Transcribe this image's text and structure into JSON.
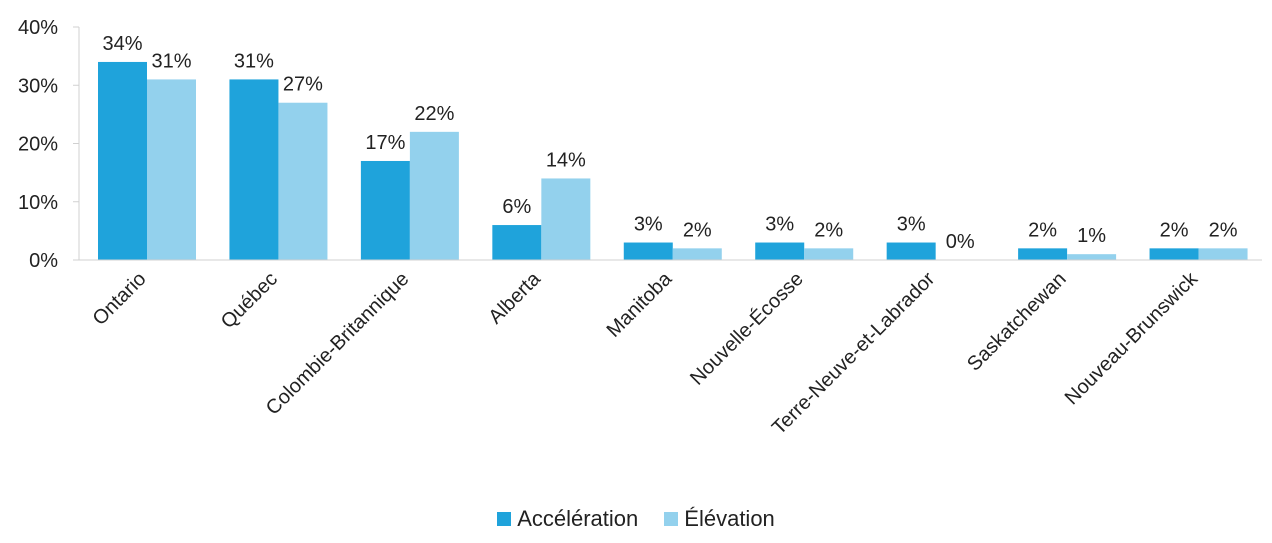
{
  "chart_data": {
    "type": "bar",
    "categories": [
      "Ontario",
      "Québec",
      "Colombie-Britannique",
      "Alberta",
      "Manitoba",
      "Nouvelle-Écosse",
      "Terre-Neuve-et-Labrador",
      "Saskatchewan",
      "Nouveau-Brunswick"
    ],
    "series": [
      {
        "name": "Accélération",
        "color": "#1fa3db",
        "values": [
          34,
          31,
          17,
          6,
          3,
          3,
          3,
          2,
          2
        ],
        "labels": [
          "34%",
          "31%",
          "17%",
          "6%",
          "3%",
          "3%",
          "3%",
          "2%",
          "2%"
        ]
      },
      {
        "name": "Élévation",
        "color": "#93d1ed",
        "values": [
          31,
          27,
          22,
          14,
          2,
          2,
          0,
          1,
          2
        ],
        "labels": [
          "31%",
          "27%",
          "22%",
          "14%",
          "2%",
          "2%",
          "0%",
          "1%",
          "2%"
        ]
      }
    ],
    "ylim": [
      0,
      40
    ],
    "yticks": [
      0,
      10,
      20,
      30,
      40
    ],
    "yticklabels": [
      "0%",
      "10%",
      "20%",
      "30%",
      "40%"
    ],
    "grid": false,
    "legend_position": "bottom"
  }
}
